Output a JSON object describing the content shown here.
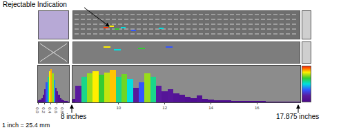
{
  "labels": {
    "indication": "Rejectable Indication",
    "scan_start": "8 inches",
    "scan_end": "17.875 inches",
    "conversion": "1 inch = 25.4 mm"
  },
  "chart_data": [
    {
      "type": "bar",
      "x": [
        0.025,
        0.075,
        0.125,
        0.175,
        0.225,
        0.275,
        0.325,
        0.375,
        0.425,
        0.475,
        0.525,
        0.575,
        0.625,
        0.675,
        0.725,
        0.775,
        0.825,
        0.875,
        0.925,
        0.975
      ],
      "values": [
        5,
        8,
        12,
        20,
        35,
        55,
        70,
        85,
        90,
        80,
        60,
        40,
        30,
        20,
        12,
        8,
        5,
        4,
        3,
        2
      ],
      "xlim": [
        0,
        1
      ],
      "xticks": [
        {
          "value": 0,
          "label": "0.0"
        },
        {
          "value": 0.2,
          "label": "0.2"
        },
        {
          "value": 0.4,
          "label": "0.4"
        },
        {
          "value": 0.6,
          "label": "0.6"
        },
        {
          "value": 0.8,
          "label": "0.8"
        }
      ],
      "ylim": [
        0,
        100
      ],
      "grid": false,
      "tick_labels": "x"
    },
    {
      "type": "bar",
      "x": [
        8.0,
        8.25,
        8.5,
        8.75,
        9.0,
        9.25,
        9.5,
        9.75,
        10.0,
        10.25,
        10.5,
        10.75,
        11.0,
        11.25,
        11.5,
        11.75,
        12.0,
        12.25,
        12.5,
        12.75,
        13.0,
        13.25,
        13.5,
        13.75,
        14.0,
        14.25,
        14.5,
        14.75,
        15.0,
        15.25,
        15.5,
        15.75,
        16.0,
        16.25,
        16.5,
        16.75,
        17.0,
        17.25,
        17.5,
        17.75
      ],
      "values": [
        10,
        45,
        70,
        80,
        85,
        75,
        82,
        88,
        70,
        78,
        65,
        40,
        55,
        80,
        70,
        45,
        30,
        35,
        25,
        20,
        15,
        12,
        18,
        10,
        8,
        6,
        5,
        5,
        4,
        4,
        3,
        3,
        3,
        3,
        2,
        2,
        2,
        2,
        2,
        2
      ],
      "xlim": [
        8,
        17.875
      ],
      "xticks": [
        10,
        12,
        14,
        16
      ],
      "ylim": [
        0,
        100
      ],
      "grid": false,
      "tick_labels": "x"
    }
  ]
}
